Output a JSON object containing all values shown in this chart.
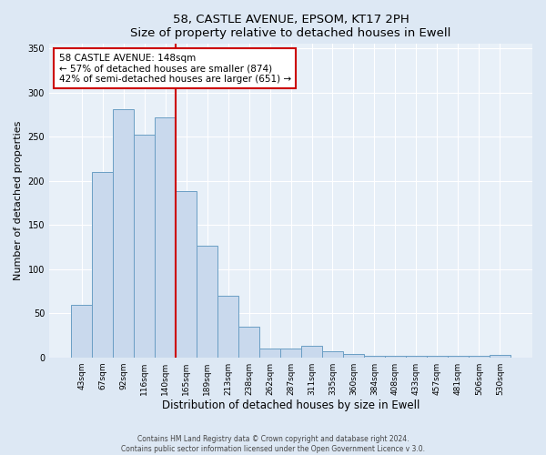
{
  "title": "58, CASTLE AVENUE, EPSOM, KT17 2PH",
  "subtitle": "Size of property relative to detached houses in Ewell",
  "xlabel": "Distribution of detached houses by size in Ewell",
  "ylabel": "Number of detached properties",
  "bar_labels": [
    "43sqm",
    "67sqm",
    "92sqm",
    "116sqm",
    "140sqm",
    "165sqm",
    "189sqm",
    "213sqm",
    "238sqm",
    "262sqm",
    "287sqm",
    "311sqm",
    "335sqm",
    "360sqm",
    "384sqm",
    "408sqm",
    "433sqm",
    "457sqm",
    "481sqm",
    "506sqm",
    "530sqm"
  ],
  "bar_values": [
    60,
    210,
    281,
    252,
    272,
    188,
    126,
    70,
    35,
    10,
    10,
    13,
    7,
    4,
    2,
    2,
    2,
    2,
    2,
    2,
    3
  ],
  "bar_color": "#c9d9ed",
  "bar_edgecolor": "#6a9ec4",
  "vline_color": "#cc0000",
  "annotation_title": "58 CASTLE AVENUE: 148sqm",
  "annotation_line1": "← 57% of detached houses are smaller (874)",
  "annotation_line2": "42% of semi-detached houses are larger (651) →",
  "annotation_box_color": "#cc0000",
  "ylim": [
    0,
    355
  ],
  "footer1": "Contains HM Land Registry data © Crown copyright and database right 2024.",
  "footer2": "Contains public sector information licensed under the Open Government Licence v 3.0.",
  "background_color": "#dde8f4",
  "plot_background": "#e8f0f8"
}
